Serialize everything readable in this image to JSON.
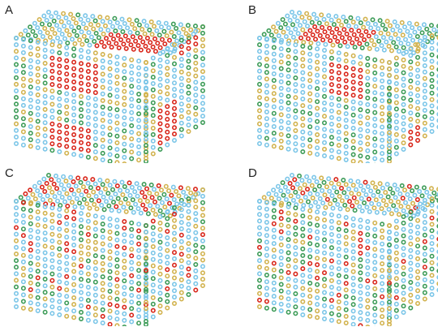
{
  "figure": {
    "panels": [
      {
        "label": "A",
        "cluster_mode": "large-clusters"
      },
      {
        "label": "B",
        "cluster_mode": "two-large-clusters"
      },
      {
        "label": "C",
        "cluster_mode": "small-clusters"
      },
      {
        "label": "D",
        "cluster_mode": "dispersed"
      }
    ],
    "atom_colors": {
      "red": "#d9271b",
      "blue": "#7cc6e8",
      "green": "#3d9c58",
      "yellow": "#d2b34f"
    }
  }
}
